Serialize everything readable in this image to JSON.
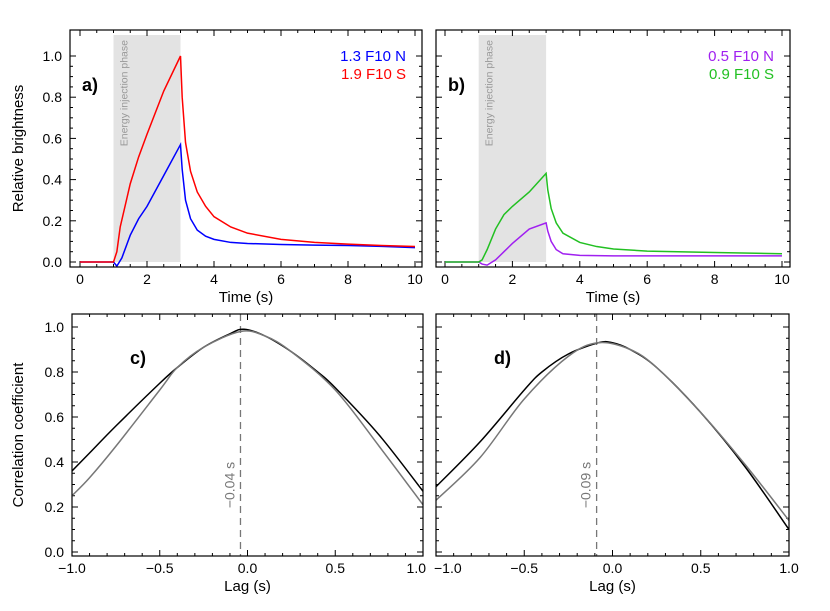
{
  "chart_data": [
    {
      "panel": "a)",
      "type": "line",
      "xlabel": "Time (s)",
      "ylabel": "Relative brightness",
      "xlim": [
        0,
        10
      ],
      "ylim": [
        -0.024,
        1.126
      ],
      "xticks": [
        "0",
        "2",
        "4",
        "6",
        "8",
        "10"
      ],
      "yticks": [
        "0.0",
        "0.2",
        "0.4",
        "0.6",
        "0.8",
        "1.0"
      ],
      "shaded_region": {
        "x": [
          1,
          3
        ],
        "label": "Energy injection phase",
        "color": "#e3e3e3"
      },
      "series": [
        {
          "name": "1.3 F10 N",
          "color": "#0000ff",
          "x": [
            0,
            1,
            1.1,
            1.25,
            1.5,
            1.75,
            2,
            2.5,
            3,
            3.05,
            3.15,
            3.3,
            3.5,
            3.75,
            4,
            4.5,
            5,
            6,
            7,
            8,
            9,
            10
          ],
          "y": [
            0,
            0,
            -0.02,
            0.02,
            0.13,
            0.21,
            0.27,
            0.42,
            0.57,
            0.45,
            0.3,
            0.21,
            0.155,
            0.125,
            0.11,
            0.095,
            0.09,
            0.085,
            0.082,
            0.08,
            0.076,
            0.07
          ]
        },
        {
          "name": "1.9 F10 S",
          "color": "#ff0000",
          "x": [
            0,
            1,
            1.1,
            1.2,
            1.5,
            1.75,
            2,
            2.5,
            3,
            3.05,
            3.15,
            3.3,
            3.5,
            3.75,
            4,
            4.5,
            5,
            6,
            7,
            8,
            9,
            10
          ],
          "y": [
            0,
            0,
            0.05,
            0.17,
            0.38,
            0.51,
            0.62,
            0.83,
            1.0,
            0.8,
            0.58,
            0.44,
            0.34,
            0.27,
            0.22,
            0.17,
            0.14,
            0.11,
            0.095,
            0.087,
            0.08,
            0.075
          ]
        }
      ]
    },
    {
      "panel": "b)",
      "type": "line",
      "xlabel": "Time (s)",
      "xlim": [
        0,
        10
      ],
      "ylim": [
        -0.024,
        1.126
      ],
      "xticks": [
        "0",
        "2",
        "4",
        "6",
        "8",
        "10"
      ],
      "shaded_region": {
        "x": [
          1,
          3
        ],
        "label": "Energy injection phase",
        "color": "#e3e3e3"
      },
      "series": [
        {
          "name": "0.5 F10 N",
          "color": "#a020f0",
          "x": [
            0,
            1,
            1.1,
            1.25,
            1.5,
            1.75,
            2,
            2.5,
            3,
            3.05,
            3.15,
            3.3,
            3.5,
            4,
            5,
            6,
            8,
            10
          ],
          "y": [
            0,
            0,
            -0.01,
            -0.015,
            0.01,
            0.05,
            0.09,
            0.16,
            0.19,
            0.15,
            0.1,
            0.06,
            0.04,
            0.032,
            0.03,
            0.03,
            0.03,
            0.03
          ]
        },
        {
          "name": "0.9 F10 S",
          "color": "#22c022",
          "x": [
            0,
            1,
            1.1,
            1.25,
            1.5,
            1.75,
            2,
            2.5,
            3,
            3.05,
            3.15,
            3.3,
            3.5,
            4,
            4.5,
            5,
            6,
            8,
            10
          ],
          "y": [
            0,
            0,
            0.01,
            0.06,
            0.16,
            0.23,
            0.27,
            0.34,
            0.43,
            0.35,
            0.26,
            0.19,
            0.14,
            0.095,
            0.075,
            0.063,
            0.053,
            0.046,
            0.04
          ]
        }
      ]
    },
    {
      "panel": "c)",
      "type": "line",
      "xlabel": "Lag (s)",
      "ylabel": "Correlation coefficient",
      "xlim": [
        -1,
        1
      ],
      "ylim": [
        -0.02,
        1.06
      ],
      "xticks": [
        "−1.0",
        "−0.5",
        "0.0",
        "0.5",
        "1.0"
      ],
      "yticks": [
        "0.0",
        "0.2",
        "0.4",
        "0.6",
        "0.8",
        "1.0"
      ],
      "vline": {
        "x": -0.04,
        "label": "−0.04 s",
        "color": "#777777"
      },
      "series": [
        {
          "color": "#000000",
          "x": [
            -1,
            -0.9,
            -0.75,
            -0.5,
            -0.4,
            -0.25,
            -0.1,
            -0.02,
            0.1,
            0.25,
            0.4,
            0.5,
            0.75,
            1
          ],
          "y": [
            0.36,
            0.44,
            0.56,
            0.75,
            0.82,
            0.91,
            0.97,
            0.99,
            0.96,
            0.89,
            0.8,
            0.73,
            0.52,
            0.27
          ]
        },
        {
          "color": "#777777",
          "x": [
            -1,
            -0.9,
            -0.75,
            -0.5,
            -0.4,
            -0.25,
            -0.04,
            0.1,
            0.25,
            0.5,
            0.75,
            1
          ],
          "y": [
            0.25,
            0.33,
            0.47,
            0.72,
            0.82,
            0.91,
            0.98,
            0.96,
            0.89,
            0.72,
            0.47,
            0.21
          ]
        }
      ]
    },
    {
      "panel": "d)",
      "type": "line",
      "xlabel": "Lag (s)",
      "xlim": [
        -1,
        1
      ],
      "ylim": [
        -0.02,
        1.06
      ],
      "xticks": [
        "−1.0",
        "−0.5",
        "0.0",
        "0.5",
        "1.0"
      ],
      "vline": {
        "x": -0.09,
        "label": "−0.09 s",
        "color": "#777777"
      },
      "series": [
        {
          "color": "#000000",
          "x": [
            -1,
            -0.75,
            -0.5,
            -0.4,
            -0.25,
            -0.08,
            0,
            0.1,
            0.25,
            0.5,
            0.75,
            1
          ],
          "y": [
            0.29,
            0.49,
            0.72,
            0.8,
            0.88,
            0.93,
            0.93,
            0.9,
            0.82,
            0.62,
            0.38,
            0.1
          ]
        },
        {
          "color": "#777777",
          "x": [
            -1,
            -0.75,
            -0.5,
            -0.25,
            -0.08,
            0.1,
            0.25,
            0.5,
            0.75,
            1
          ],
          "y": [
            0.23,
            0.42,
            0.68,
            0.87,
            0.93,
            0.9,
            0.82,
            0.62,
            0.39,
            0.14
          ]
        }
      ]
    }
  ]
}
